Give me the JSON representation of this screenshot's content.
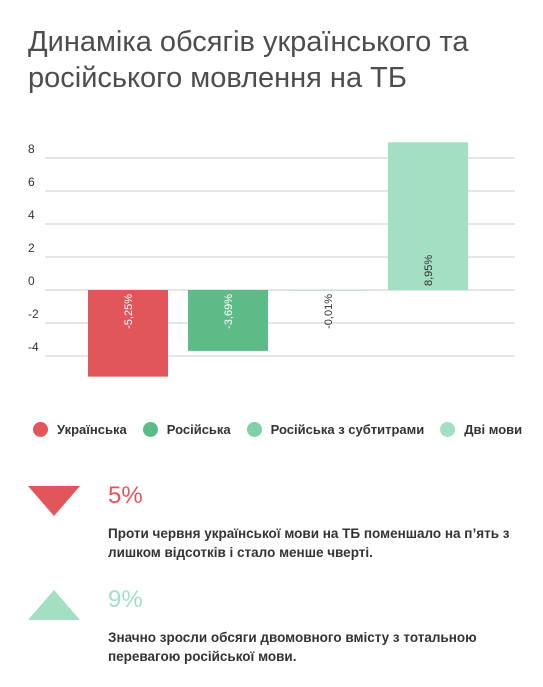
{
  "title": "Динаміка обсягів українського та російського мовлення на ТБ",
  "colors": {
    "ukrainian": "#e0565b",
    "russian": "#5dbb88",
    "russian_subtitles": "#7fd0a8",
    "bilingual": "#a3dfc3"
  },
  "chart_data": {
    "type": "bar",
    "categories": [
      "Українська",
      "Російська",
      "Російська з субтитрами",
      "Дві мови"
    ],
    "values": [
      -5.25,
      -3.69,
      -0.01,
      8.95
    ],
    "data_labels": [
      "-5,25%",
      "-3,69%",
      "-0,01%",
      "8,95%"
    ],
    "ylim": [
      -4,
      8
    ],
    "yticks": [
      8,
      6,
      4,
      2,
      0,
      -2,
      -4
    ],
    "grid": true,
    "legend": "bottom",
    "colors": [
      "#e0565b",
      "#5dbb88",
      "#7fd0a8",
      "#a3dfc3"
    ]
  },
  "legend": {
    "items": [
      {
        "label": "Українська",
        "color": "#e0565b"
      },
      {
        "label": "Російська",
        "color": "#5dbb88"
      },
      {
        "label": "Російська з субтитрами",
        "color": "#7fd0a8"
      },
      {
        "label": "Дві мови",
        "color": "#a3dfc3"
      }
    ]
  },
  "stats": [
    {
      "value": "5%",
      "direction": "down",
      "color": "#e0565b",
      "text": "Проти червня української мови на ТБ поменшало на п’ять з лишком відсотків і стало менше чверті."
    },
    {
      "value": "9%",
      "direction": "up",
      "color": "#a3dfc3",
      "text": "Значно зросли обсяги двомовного вмісту з тотальною перевагою російської мови."
    }
  ]
}
